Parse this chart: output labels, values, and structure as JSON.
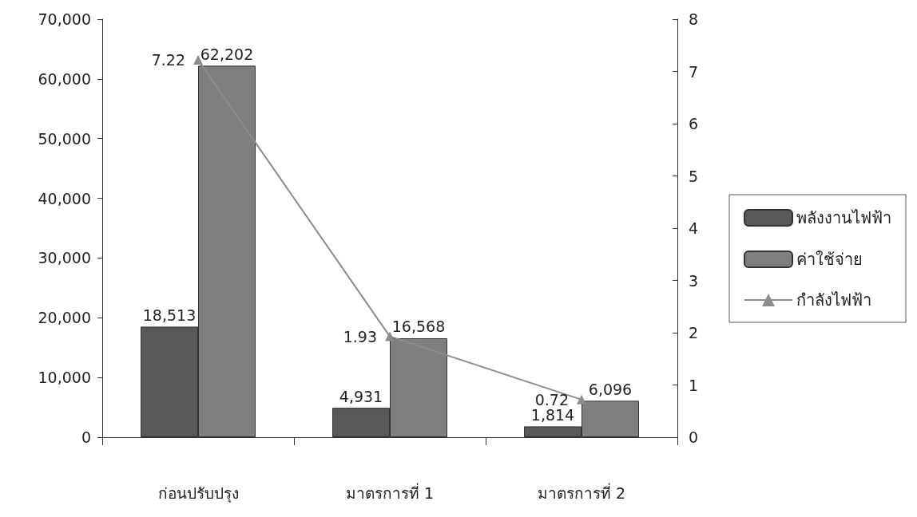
{
  "chart_data": {
    "type": "bar",
    "categories": [
      "ก่อนปรับปรุง",
      "มาตรการที่ 1",
      "มาตรการที่ 2"
    ],
    "series": [
      {
        "name": "พลังงานไฟฟ้า",
        "color": "#595959",
        "values": [
          18513,
          4931,
          1814
        ],
        "value_labels": [
          "18,513",
          "4,931",
          "1,814"
        ]
      },
      {
        "name": "ค่าใช้จ่าย",
        "color": "#7f7f7f",
        "values": [
          62202,
          16568,
          6096
        ],
        "value_labels": [
          "62,202",
          "16,568",
          "6,096"
        ]
      },
      {
        "name": "กำลังไฟฟ้า",
        "type": "line",
        "axis": "y2",
        "color": "#8c8c8c",
        "values": [
          7.22,
          1.93,
          0.72
        ],
        "value_labels": [
          "7.22",
          "1.93",
          "0.72"
        ]
      }
    ],
    "ylim": [
      0,
      70000
    ],
    "yticks": [
      {
        "value": 0,
        "label": "0"
      },
      {
        "value": 10000,
        "label": "10,000"
      },
      {
        "value": 20000,
        "label": "20,000"
      },
      {
        "value": 30000,
        "label": "30,000"
      },
      {
        "value": 40000,
        "label": "40,000"
      },
      {
        "value": 50000,
        "label": "50,000"
      },
      {
        "value": 60000,
        "label": "60,000"
      },
      {
        "value": 70000,
        "label": "70,000"
      }
    ],
    "y2lim": [
      0,
      8
    ],
    "y2ticks": [
      0,
      1,
      2,
      3,
      4,
      5,
      6,
      7,
      8
    ],
    "grid": false,
    "legend": "right",
    "marker": "triangle"
  }
}
